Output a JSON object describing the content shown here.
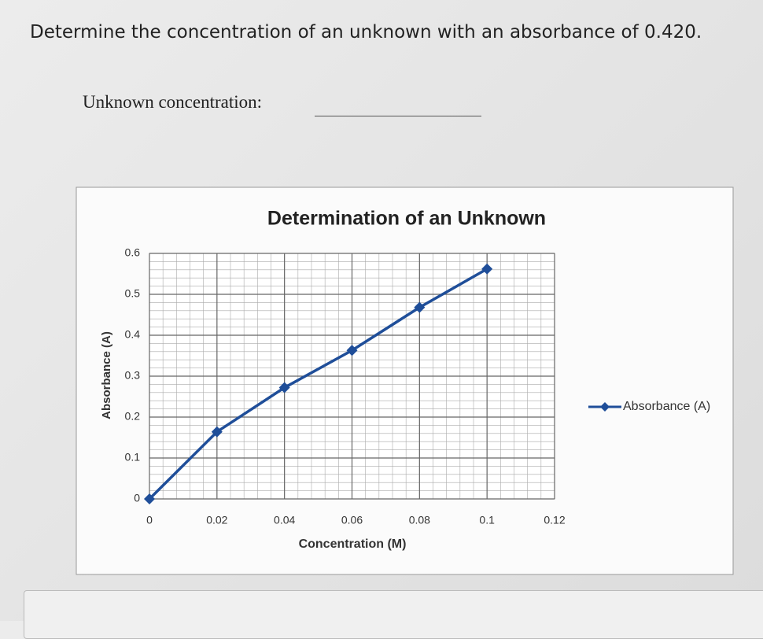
{
  "question": "Determine the concentration of an unknown with an absorbance of 0.420.",
  "answer_label": "Unknown concentration:",
  "chart_data": {
    "type": "line",
    "title": "Determination of an Unknown",
    "x_label": "Concentration (M)",
    "y_label": "Absorbance (A)",
    "x": [
      0,
      0.02,
      0.04,
      0.06,
      0.08,
      0.1
    ],
    "series": [
      {
        "name": "Absorbance (A)",
        "color": "#1f4e99",
        "values": [
          0,
          0.164,
          0.272,
          0.363,
          0.468,
          0.562
        ]
      }
    ],
    "xlim": [
      0,
      0.12
    ],
    "xticks": [
      0,
      0.02,
      0.04,
      0.06,
      0.08,
      0.1,
      0.12
    ],
    "ylim": [
      0,
      0.6
    ],
    "yticks": [
      0,
      0.1,
      0.2,
      0.3,
      0.4,
      0.5,
      0.6
    ],
    "grid": true,
    "legend": "right"
  }
}
